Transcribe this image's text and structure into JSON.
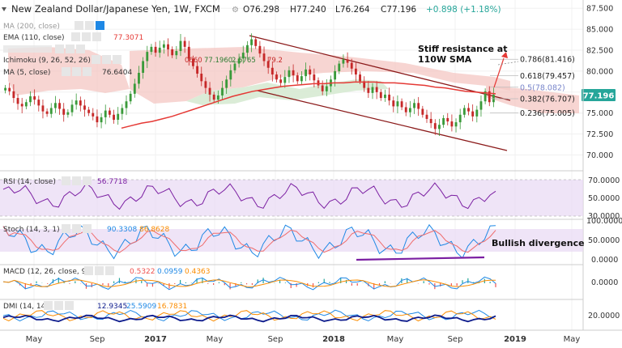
{
  "header": {
    "title": "New Zealand Dollar/Japanese Yen, 1W, FXCM",
    "ohlc": {
      "open": "O76.298",
      "high": "H77.240",
      "low": "L76.264",
      "close": "C77.196",
      "change": "+0.898 (+1.18%)"
    }
  },
  "indicators": {
    "ma200": {
      "label": "MA (200, close)"
    },
    "ema110": {
      "label": "EMA (110, close)",
      "value": "77.3071"
    },
    "ichimoku": {
      "label": "Ichimoku (9, 26, 52, 26)",
      "values": [
        "0660",
        "77.1960",
        "2.5765",
        "79.2"
      ]
    },
    "ma5": {
      "label": "MA (5, close)",
      "value": "76.6404"
    }
  },
  "price_badge": "77.196",
  "annotations": {
    "resistance": [
      "Stiff resistance at",
      "110W SMA"
    ],
    "divergence": "Bullish divergence"
  },
  "fibs": [
    {
      "label": "0.786(81.416)",
      "price": 81.416
    },
    {
      "label": "0.618(79.457)",
      "price": 79.457
    },
    {
      "label": "0.5(78.082)",
      "price": 78.082
    },
    {
      "label": "0.382(76.707)",
      "price": 76.707
    },
    {
      "label": "0.236(75.005)",
      "price": 75.005
    }
  ],
  "panes": {
    "rsi": {
      "label": "RSI (14, close)",
      "value": "56.7718",
      "ticks": [
        "70.0000",
        "50.0000",
        "30.0000"
      ]
    },
    "stoch": {
      "label": "Stoch (14, 3, 1)",
      "k": "90.3308",
      "d": "86.8628",
      "ticks": [
        "100.0000",
        "50.0000",
        "0.0000"
      ]
    },
    "macd": {
      "label": "MACD (12, 26, close, 9)",
      "values": [
        "0.5322",
        "0.0959",
        "0.4363"
      ],
      "ticks": [
        "0.0000"
      ]
    },
    "dmi": {
      "label": "DMI (14, 14)",
      "values": [
        "12.9345",
        "25.5909",
        "16.7831"
      ],
      "ticks": [
        "20.0000"
      ]
    }
  },
  "colors": {
    "up": "#26a69a",
    "down": "#ef5350",
    "candle_up": "#3a9a3a",
    "candle_down": "#c62828",
    "ema": "#e53935",
    "channel": "#8b1a1a",
    "cloud_red": "#f4c7c3",
    "cloud_green": "#d7ead3",
    "purple": "#7b1fa2",
    "blue": "#1e88e5",
    "orange": "#fb8c00",
    "navy": "#0d1b8c"
  },
  "chart_data": {
    "type": "candlestick",
    "symbol": "New Zealand Dollar/Japanese Yen",
    "timeframe": "1W",
    "x_ticks": [
      "May",
      "Sep",
      "2017",
      "May",
      "Sep",
      "2018",
      "May",
      "Sep",
      "2019",
      "May"
    ],
    "y_ticks": [
      87.5,
      85.0,
      82.5,
      80.0,
      77.5,
      75.0,
      72.5,
      70.0
    ],
    "y_tick_labels": [
      "87.500",
      "85.000",
      "82.500",
      "80.000",
      "77.500",
      "75.000",
      "72.500",
      "70.000"
    ],
    "ylim": [
      68.6,
      88.1
    ],
    "last": 77.196,
    "closes": [
      78.0,
      77.6,
      76.8,
      76.1,
      75.8,
      76.3,
      77.0,
      76.6,
      75.9,
      75.2,
      74.9,
      75.6,
      76.2,
      75.5,
      74.8,
      75.1,
      76.0,
      76.5,
      75.9,
      75.4,
      75.0,
      74.6,
      73.9,
      74.5,
      75.3,
      74.8,
      74.2,
      74.9,
      75.6,
      76.4,
      77.3,
      78.5,
      79.8,
      81.2,
      82.3,
      82.9,
      82.2,
      82.8,
      83.2,
      82.6,
      81.9,
      82.4,
      83.6,
      82.9,
      81.5,
      80.6,
      79.7,
      78.8,
      78.0,
      77.2,
      76.6,
      77.1,
      78.0,
      79.0,
      80.1,
      80.9,
      81.5,
      82.2,
      83.1,
      83.8,
      83.0,
      82.1,
      81.2,
      80.4,
      79.6,
      79.0,
      78.6,
      79.3,
      80.1,
      79.5,
      78.8,
      79.4,
      80.2,
      79.6,
      78.9,
      78.3,
      77.6,
      78.2,
      79.0,
      80.0,
      80.9,
      81.4,
      81.0,
      80.3,
      79.6,
      78.8,
      78.0,
      77.4,
      78.1,
      77.5,
      76.8,
      77.2,
      76.5,
      75.8,
      76.4,
      75.7,
      75.1,
      75.6,
      76.2,
      75.5,
      74.8,
      74.3,
      73.8,
      73.1,
      73.6,
      74.4,
      74.0,
      73.4,
      73.9,
      74.8,
      75.6,
      75.2,
      74.6,
      75.4,
      76.4,
      77.6,
      76.3,
      77.196
    ],
    "series": [
      {
        "name": "EMA (110, close)",
        "values": [
          73.2,
          73.5,
          73.8,
          74.0,
          74.3,
          74.6,
          75.0,
          75.4,
          75.8,
          76.2,
          76.6,
          77.0,
          77.3,
          77.6,
          77.8,
          78.0,
          78.2,
          78.3,
          78.4,
          78.5,
          78.5,
          78.6,
          78.6,
          78.7,
          78.7,
          78.7,
          78.6,
          78.6,
          78.5,
          78.4,
          78.3,
          78.1,
          78.0,
          77.8,
          77.6,
          77.5,
          77.4,
          77.3
        ]
      }
    ],
    "fib_levels": {
      "0.786": 81.416,
      "0.618": 79.457,
      "0.5": 78.082,
      "0.382": 76.707,
      "0.236": 75.005
    }
  }
}
